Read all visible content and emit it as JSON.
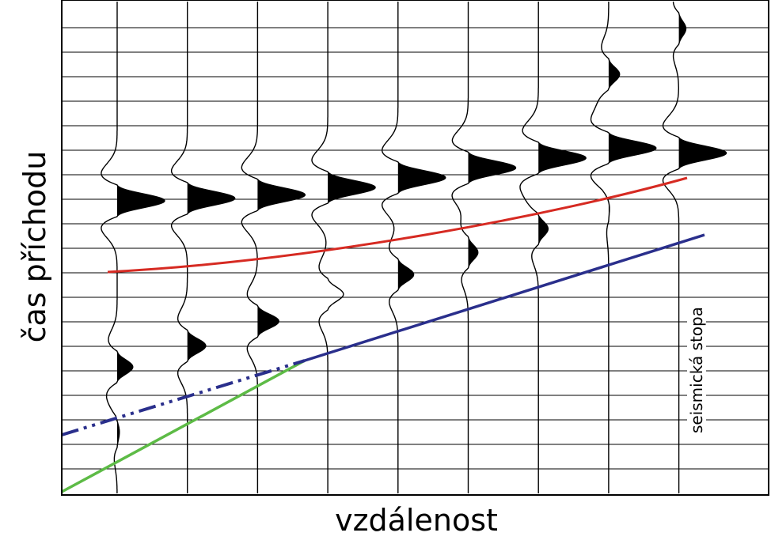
{
  "labels": {
    "y_axis": "čas příchodu",
    "x_axis": "vzdálenost",
    "trace": "seismická stopa"
  },
  "colors": {
    "reflection": "#d62a22",
    "refraction": "#2a2f8c",
    "direct": "#5dbb46",
    "trace": "#000000",
    "grid": "#000000"
  },
  "traces": [
    {
      "wavelets": [
        {
          "t": 0.405,
          "amp": 1.0,
          "fill": true
        },
        {
          "t": 0.743,
          "amp": 0.55,
          "fill": true
        },
        {
          "t": 0.875,
          "amp": 0.18,
          "fill": true
        }
      ]
    },
    {
      "wavelets": [
        {
          "t": 0.4,
          "amp": 1.0,
          "fill": true
        },
        {
          "t": 0.7,
          "amp": 0.6,
          "fill": true
        }
      ]
    },
    {
      "wavelets": [
        {
          "t": 0.393,
          "amp": 1.0,
          "fill": true
        },
        {
          "t": 0.65,
          "amp": 0.65,
          "fill": true
        }
      ]
    },
    {
      "wavelets": [
        {
          "t": 0.378,
          "amp": 1.0,
          "fill": true
        },
        {
          "t": 0.595,
          "amp": 0.55,
          "fill": false
        }
      ]
    },
    {
      "wavelets": [
        {
          "t": 0.358,
          "amp": 1.0,
          "fill": true
        },
        {
          "t": 0.555,
          "amp": 0.55,
          "fill": true
        }
      ]
    },
    {
      "wavelets": [
        {
          "t": 0.338,
          "amp": 1.0,
          "fill": true
        },
        {
          "t": 0.51,
          "amp": 0.42,
          "fill": true
        }
      ]
    },
    {
      "wavelets": [
        {
          "t": 0.318,
          "amp": 1.0,
          "fill": true
        },
        {
          "t": 0.462,
          "amp": 0.42,
          "fill": true
        }
      ]
    },
    {
      "wavelets": [
        {
          "t": 0.298,
          "amp": 1.0,
          "fill": true
        },
        {
          "t": 0.148,
          "amp": 0.45,
          "fill": true
        },
        {
          "t": 0.415,
          "amp": 0.12,
          "fill": true
        }
      ]
    },
    {
      "wavelets": [
        {
          "t": 0.308,
          "amp": 1.0,
          "fill": true
        },
        {
          "t": 0.055,
          "amp": 0.35,
          "fill": true
        }
      ]
    }
  ]
}
